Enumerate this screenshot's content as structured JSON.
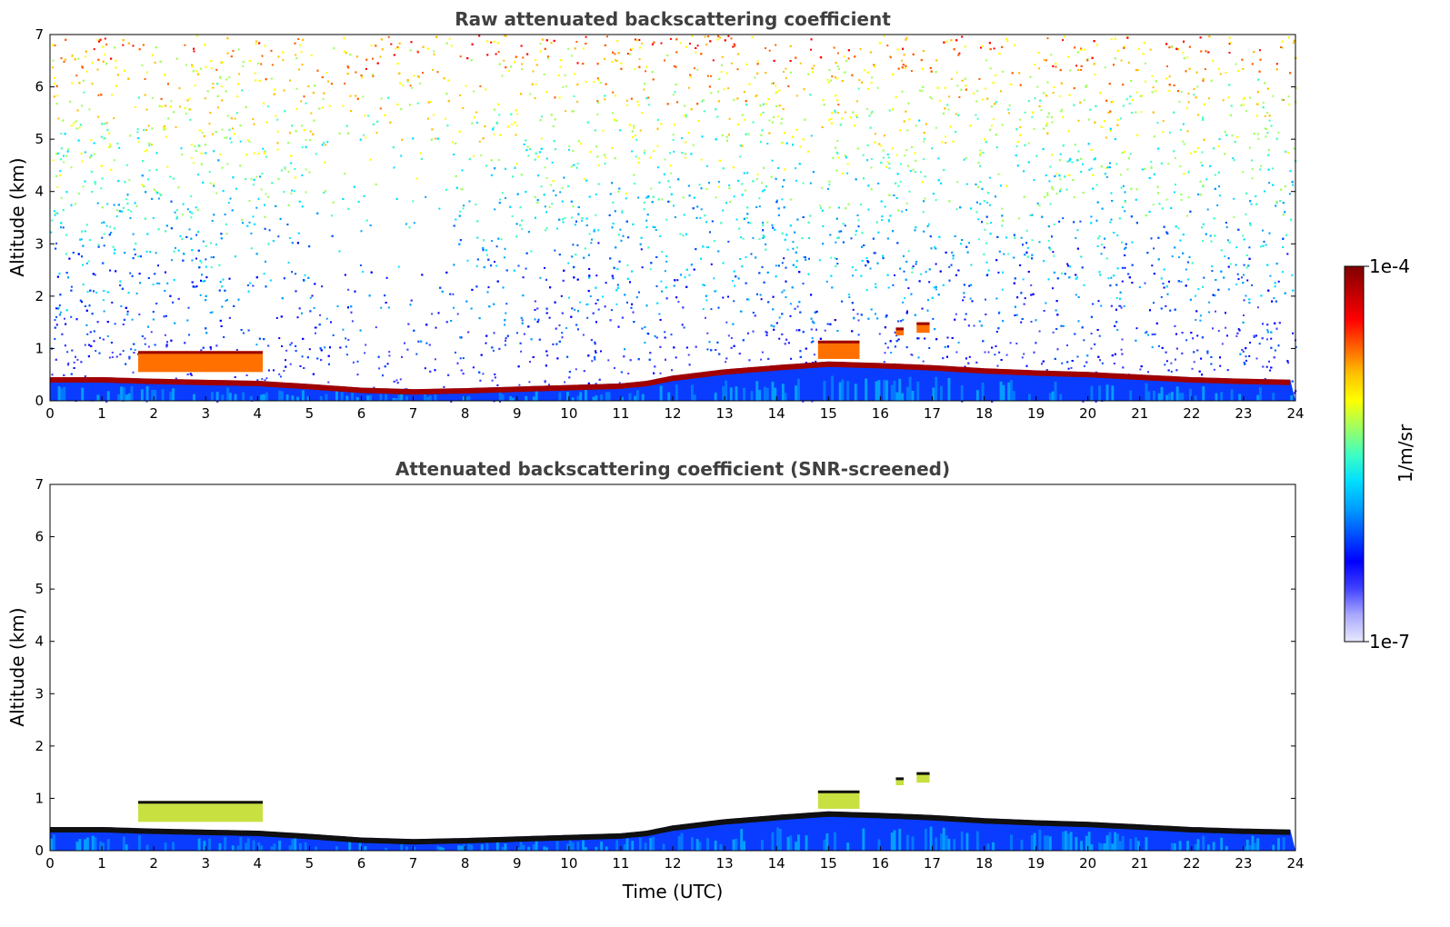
{
  "chart_data": [
    {
      "type": "heatmap",
      "title": "Raw attenuated backscattering coefficient",
      "xlabel": "",
      "ylabel": "Altitude (km)",
      "xlim": [
        0,
        24
      ],
      "ylim": [
        0,
        7
      ],
      "x_ticks": [
        "0",
        "1",
        "2",
        "3",
        "4",
        "5",
        "6",
        "7",
        "8",
        "9",
        "10",
        "11",
        "12",
        "13",
        "14",
        "15",
        "16",
        "17",
        "18",
        "19",
        "20",
        "21",
        "22",
        "23",
        "24"
      ],
      "y_ticks": [
        "0",
        "1",
        "2",
        "3",
        "4",
        "5",
        "6",
        "7"
      ],
      "noise": "high",
      "layer_top_km": [
        [
          0,
          0.45
        ],
        [
          1,
          0.45
        ],
        [
          2,
          0.42
        ],
        [
          3,
          0.4
        ],
        [
          4,
          0.38
        ],
        [
          5,
          0.32
        ],
        [
          6,
          0.25
        ],
        [
          7,
          0.22
        ],
        [
          8,
          0.24
        ],
        [
          9,
          0.27
        ],
        [
          10,
          0.3
        ],
        [
          11,
          0.33
        ],
        [
          11.5,
          0.38
        ],
        [
          12,
          0.48
        ],
        [
          13,
          0.6
        ],
        [
          14,
          0.68
        ],
        [
          15,
          0.75
        ],
        [
          16,
          0.72
        ],
        [
          17,
          0.68
        ],
        [
          18,
          0.62
        ],
        [
          19,
          0.58
        ],
        [
          20,
          0.55
        ],
        [
          21,
          0.5
        ],
        [
          22,
          0.45
        ],
        [
          23,
          0.42
        ],
        [
          24,
          0.4
        ]
      ],
      "clouds": [
        {
          "x0": 1.7,
          "x1": 4.1,
          "top_km": 0.95,
          "base_km": 0.55
        },
        {
          "x0": 14.8,
          "x1": 15.6,
          "top_km": 1.15,
          "base_km": 0.8
        },
        {
          "x0": 16.3,
          "x1": 16.45,
          "top_km": 1.4,
          "base_km": 1.25
        },
        {
          "x0": 16.7,
          "x1": 16.95,
          "top_km": 1.5,
          "base_km": 1.3
        }
      ]
    },
    {
      "type": "heatmap",
      "title": "Attenuated backscattering coefficient (SNR-screened)",
      "xlabel": "Time (UTC)",
      "ylabel": "Altitude (km)",
      "xlim": [
        0,
        24
      ],
      "ylim": [
        0,
        7
      ],
      "x_ticks": [
        "0",
        "1",
        "2",
        "3",
        "4",
        "5",
        "6",
        "7",
        "8",
        "9",
        "10",
        "11",
        "12",
        "13",
        "14",
        "15",
        "16",
        "17",
        "18",
        "19",
        "20",
        "21",
        "22",
        "23",
        "24"
      ],
      "y_ticks": [
        "0",
        "1",
        "2",
        "3",
        "4",
        "5",
        "6",
        "7"
      ],
      "noise": "none",
      "layer_top_km": [
        [
          0,
          0.45
        ],
        [
          1,
          0.45
        ],
        [
          2,
          0.42
        ],
        [
          3,
          0.4
        ],
        [
          4,
          0.38
        ],
        [
          5,
          0.32
        ],
        [
          6,
          0.25
        ],
        [
          7,
          0.22
        ],
        [
          8,
          0.24
        ],
        [
          9,
          0.27
        ],
        [
          10,
          0.3
        ],
        [
          11,
          0.33
        ],
        [
          11.5,
          0.38
        ],
        [
          12,
          0.48
        ],
        [
          13,
          0.6
        ],
        [
          14,
          0.68
        ],
        [
          15,
          0.75
        ],
        [
          16,
          0.72
        ],
        [
          17,
          0.68
        ],
        [
          18,
          0.62
        ],
        [
          19,
          0.58
        ],
        [
          20,
          0.55
        ],
        [
          21,
          0.5
        ],
        [
          22,
          0.45
        ],
        [
          23,
          0.42
        ],
        [
          24,
          0.4
        ]
      ],
      "clouds": [
        {
          "x0": 1.7,
          "x1": 4.1,
          "top_km": 0.95,
          "base_km": 0.55
        },
        {
          "x0": 14.8,
          "x1": 15.6,
          "top_km": 1.15,
          "base_km": 0.8
        },
        {
          "x0": 16.3,
          "x1": 16.45,
          "top_km": 1.4,
          "base_km": 1.25
        },
        {
          "x0": 16.7,
          "x1": 16.95,
          "top_km": 1.5,
          "base_km": 1.3
        }
      ]
    }
  ],
  "colorbar": {
    "max_label": "1e-4",
    "min_label": "1e-7",
    "unit_label": "1/m/sr",
    "colors": [
      "#e8e8ff",
      "#a8a8ff",
      "#4040ff",
      "#0000ff",
      "#0050ff",
      "#00a0ff",
      "#00e0ff",
      "#40ffc0",
      "#a0ff60",
      "#ffff00",
      "#ffc000",
      "#ff6000",
      "#ff0000",
      "#c00000",
      "#800000"
    ]
  }
}
